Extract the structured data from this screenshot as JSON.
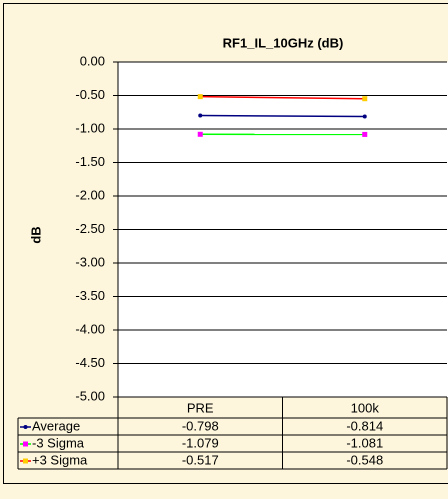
{
  "chart_data": {
    "type": "line",
    "title": "RF1_IL_10GHz (dB)",
    "y_label": "dB",
    "categories": [
      "PRE",
      "100k"
    ],
    "series": [
      {
        "name": "Average",
        "color": "#000080",
        "line_color": "#000080",
        "values": [
          -0.798,
          -0.814
        ]
      },
      {
        "name": "-3 Sigma",
        "color": "#ff00ff",
        "line_color": "#00ff00",
        "values": [
          -1.079,
          -1.081
        ]
      },
      {
        "name": "+3 Sigma",
        "color": "#ffcc00",
        "line_color": "#ff0000",
        "values": [
          -0.517,
          -0.548
        ]
      }
    ],
    "ylim": [
      -5,
      0
    ],
    "yticks": [
      {
        "value": 0,
        "label": "0.00"
      },
      {
        "value": -0.5,
        "label": "-0.50"
      },
      {
        "value": -1,
        "label": "-1.00"
      },
      {
        "value": -1.5,
        "label": "-1.50"
      },
      {
        "value": -2,
        "label": "-2.00"
      },
      {
        "value": -2.5,
        "label": "-2.50"
      },
      {
        "value": -3,
        "label": "-3.00"
      },
      {
        "value": -3.5,
        "label": "-3.50"
      },
      {
        "value": -4,
        "label": "-4.00"
      },
      {
        "value": -4.5,
        "label": "-4.50"
      },
      {
        "value": -5,
        "label": "-5.00"
      }
    ],
    "grid": true,
    "data_table": true
  }
}
